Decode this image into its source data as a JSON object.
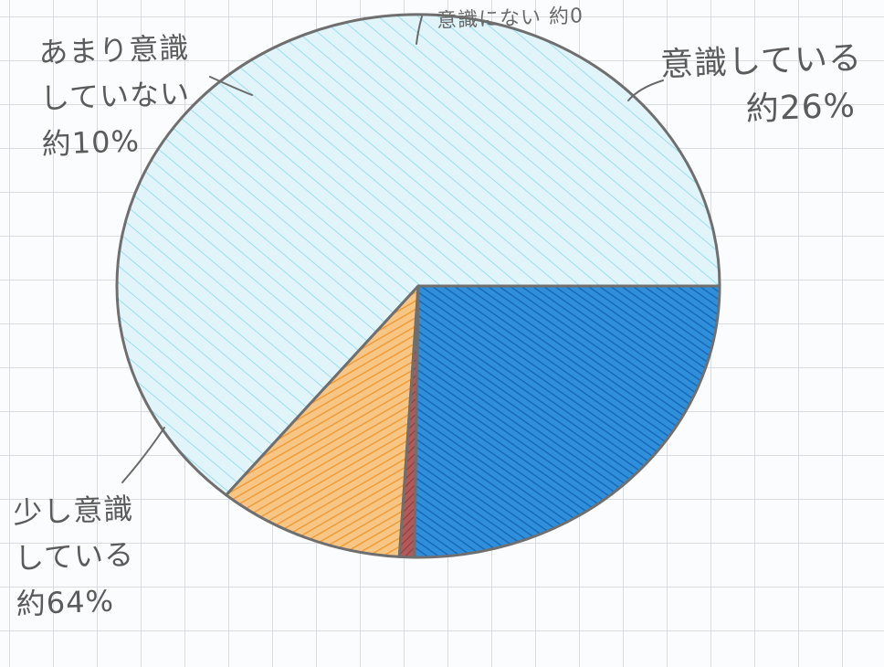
{
  "chart_data": {
    "type": "pie",
    "start_angle_deg": 0,
    "direction": "counterclockwise",
    "slices": [
      {
        "key": "a",
        "value": 64,
        "color": "#d8f1f8",
        "hatch": "#86d6ea"
      },
      {
        "key": "b",
        "value": 10,
        "color": "#f7c27d",
        "hatch": "#ee9a3c"
      },
      {
        "key": "c",
        "value": 0.8,
        "color": "#b25a5a",
        "hatch": "#8a3a3a"
      },
      {
        "key": "d",
        "value": 25.2,
        "color": "#2c8bd6",
        "hatch": "#1a6cba"
      }
    ],
    "labels": {
      "top": "意識にない 約0",
      "tl": [
        "あまり意識",
        "していない",
        "約10%"
      ],
      "tr": [
        "意識している",
        "約26%"
      ],
      "bl": [
        "少し意識",
        "している",
        "約64%"
      ]
    },
    "outline_color": "#6f6f6f"
  }
}
